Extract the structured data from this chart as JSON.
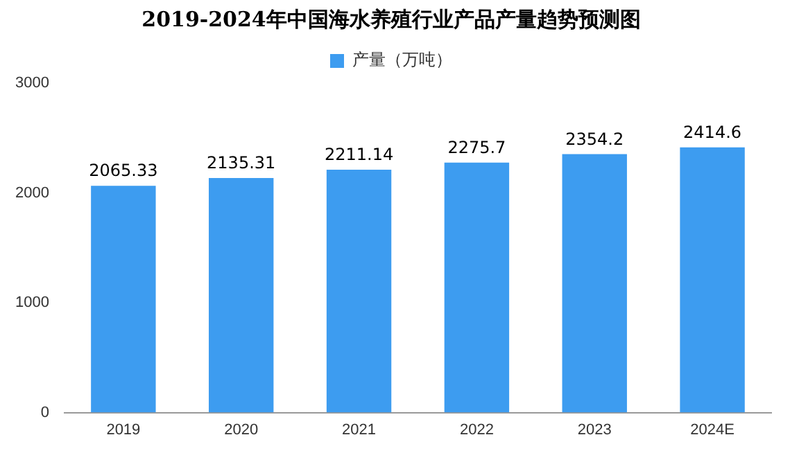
{
  "chart_data": {
    "type": "bar",
    "title": "2019-2024年中国海水养殖行业产品产量趋势预测图",
    "categories": [
      "2019",
      "2020",
      "2021",
      "2022",
      "2023",
      "2024E"
    ],
    "series": [
      {
        "name": "产量（万吨）",
        "color": "#3d9cf0",
        "values": [
          2065.33,
          2135.31,
          2211.14,
          2275.7,
          2354.2,
          2414.6
        ]
      }
    ],
    "ylim": [
      0,
      3000
    ],
    "yticks": [
      0,
      1000,
      2000,
      3000
    ],
    "grid": false,
    "legend": "top",
    "data_labels": true
  }
}
